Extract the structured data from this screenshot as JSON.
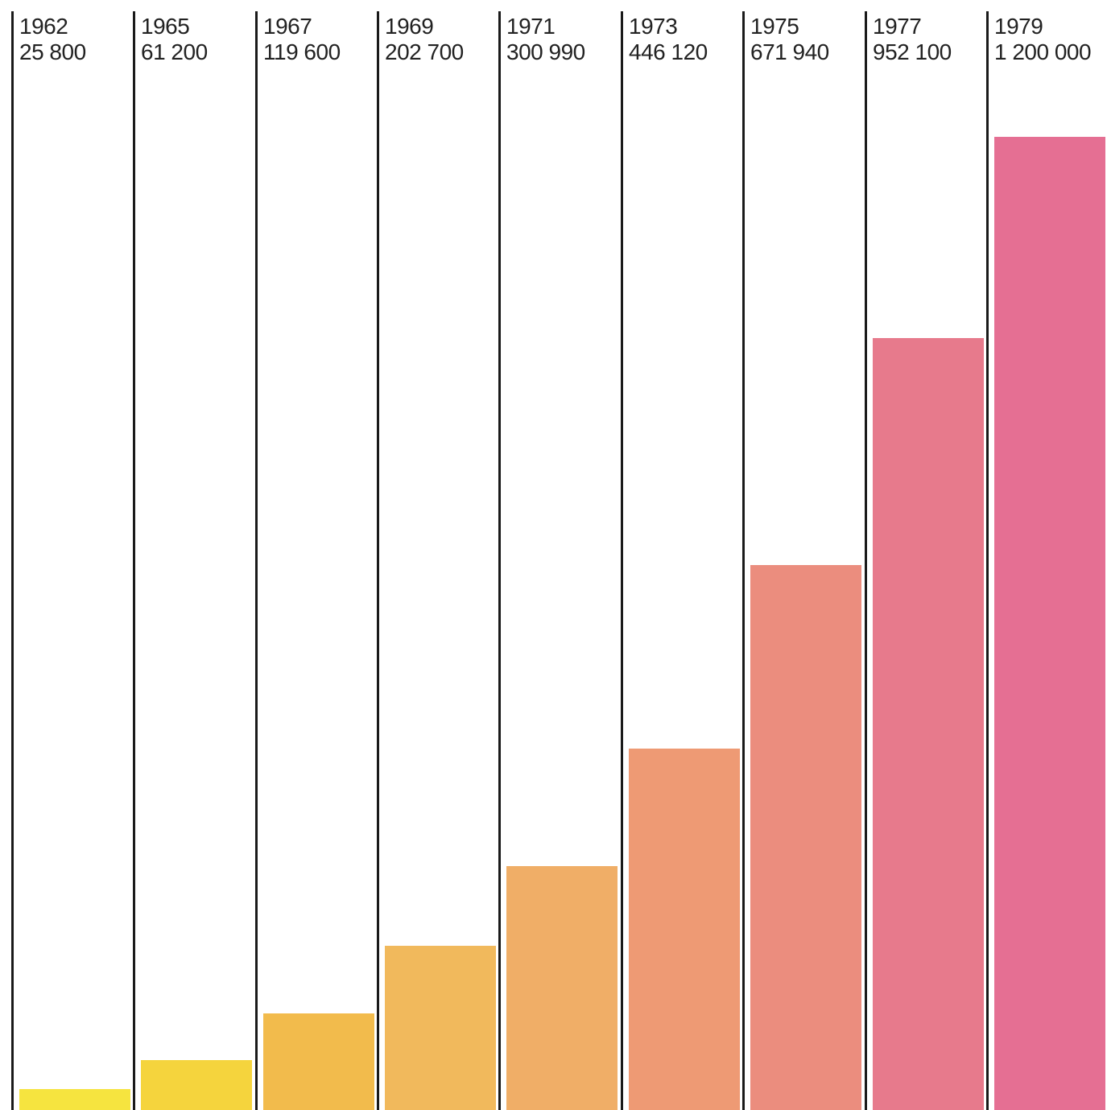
{
  "chart_data": {
    "type": "bar",
    "categories": [
      "1962",
      "1965",
      "1967",
      "1969",
      "1971",
      "1973",
      "1975",
      "1977",
      "1979"
    ],
    "value_labels": [
      "25 800",
      "61 200",
      "119 600",
      "202 700",
      "300 990",
      "446 120",
      "671 940",
      "952 100",
      "1 200 000"
    ],
    "values": [
      25800,
      61200,
      119600,
      202700,
      300990,
      446120,
      671940,
      952100,
      1200000
    ],
    "colors": [
      "#f6e43f",
      "#f5d43d",
      "#f2bb4c",
      "#f1b95c",
      "#f0ae67",
      "#ee9a74",
      "#eb8d7e",
      "#e77a8c",
      "#e56f93"
    ],
    "title": "",
    "xlabel": "",
    "ylabel": "",
    "ylim": [
      0,
      1200000
    ],
    "grid": false,
    "legend": "none"
  }
}
